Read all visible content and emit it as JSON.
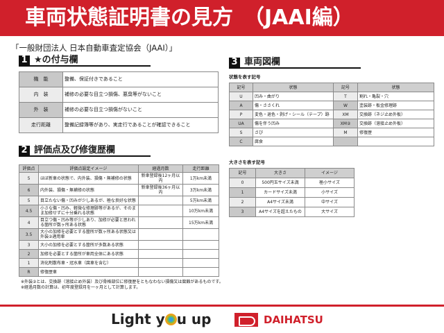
{
  "header": {
    "title": "車両状態証明書の見方　（JAAI編）"
  },
  "organization": "「一般財団法人 日本自動車査定協会（JAAI）」",
  "section1": {
    "num": "1",
    "title": "★の付与欄",
    "rows": [
      {
        "key": "機　能",
        "desc": "整備、保証付きであること"
      },
      {
        "key": "内　装",
        "desc": "補修の必要な目立つ損傷、悪臭等がないこと"
      },
      {
        "key": "外　装",
        "desc": "補修の必要な目立つ損傷がないこと"
      },
      {
        "key": "走行距離",
        "desc": "整備記録簿等があり、実走行であることが確認できること"
      }
    ]
  },
  "section2": {
    "num": "2",
    "title": "評価点及び修復歴欄",
    "headers": [
      "評価点",
      "評価点設定イメージ",
      "経過月数",
      "走行距離"
    ],
    "rows": [
      [
        "5",
        "ほぼ新車の状態で、内外装、損傷・無補修の状態",
        "新車登録後12ヶ月以内",
        "1万km未満"
      ],
      [
        "6",
        "内外装、損傷・無補修の状態",
        "新車登録後36ヶ月以内",
        "3万km未満"
      ],
      [
        "5",
        "目立たない傷・凹みが少しあるが、極な良好な状態",
        "",
        "5万km未満"
      ],
      [
        "4.5",
        "小さな傷・凹み、軽微な修理跡等があるが、そのまま加修せずに十分乗れる状態",
        "",
        "10万km未満"
      ],
      [
        "4",
        "目立つ傷・凹み等が少しあり、加修が必要と思われる箇所が数ヶ所ある状態",
        "",
        "15万km未満"
      ],
      [
        "3.5",
        "大小の加修を必要とする箇所が数ヶ所ある状態又は外装②適用車",
        "",
        ""
      ],
      [
        "3",
        "大小の加修を必要とする箇所が多数ある状態",
        "",
        ""
      ],
      [
        "2",
        "加修を必要とする箇所が車両全体にある状態",
        "",
        ""
      ],
      [
        "1",
        "消化剤散布車・冠水車（腐車を含む）",
        "",
        ""
      ],
      [
        "R",
        "修復歴車",
        "",
        ""
      ]
    ]
  },
  "notes": [
    "※外装②とは、交換跡（溶接止め外装）及び骨格部位に修復歴をともなわない損傷又は腐蝕があるものです。",
    "※経過月数の計算は、初年度登録月を一ヶ月として計算します。"
  ],
  "section3": {
    "num": "3",
    "title": "車両図欄",
    "state": {
      "label": "状態を表す記号",
      "headers": [
        "記号",
        "状態",
        "記号",
        "状態"
      ],
      "rows": [
        [
          "U",
          "凹み・曲がり",
          "T",
          "割れ・亀裂・穴"
        ],
        [
          "A",
          "傷・ささくれ",
          "W",
          "塗装跡・板金修理跡"
        ],
        [
          "P",
          "変色・退色・剥げ・シール（テープ）跡",
          "XM",
          "交換跡（ネジ止め外板）"
        ],
        [
          "UA",
          "傷を伴う凹み",
          "XM②",
          "交換跡（溶接止め外板）"
        ],
        [
          "S",
          "さび",
          "M",
          "修復歴"
        ],
        [
          "C",
          "腐食",
          "",
          ""
        ]
      ]
    },
    "size": {
      "label": "大きさを表す記号",
      "headers": [
        "記号",
        "大きさ",
        "イメージ"
      ],
      "rows": [
        [
          "0",
          "500円玉サイズ未満",
          "極小サイズ"
        ],
        [
          "1",
          "カードサイズ未満",
          "小サイズ"
        ],
        [
          "2",
          "A4サイズ未満",
          "中サイズ"
        ],
        [
          "3",
          "A4サイズを超えたもの",
          "大サイズ"
        ]
      ]
    }
  },
  "footer": {
    "slogan_pre": "Light y",
    "slogan_post": "u up",
    "brand": "DAIHATSU"
  },
  "colors": {
    "brand_red": "#d0202b"
  }
}
